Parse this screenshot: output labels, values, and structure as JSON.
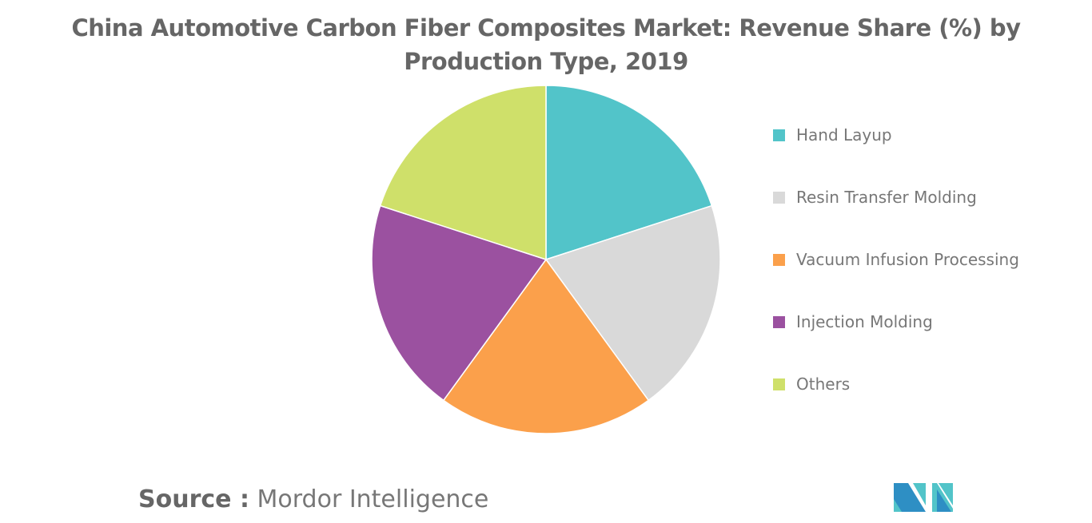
{
  "chart_data": {
    "type": "pie",
    "title": "China Automotive Carbon Fiber Composites Market: Revenue Share (%) by Production Type, 2019",
    "categories": [
      "Hand Layup",
      "Resin Transfer Molding",
      "Vacuum Infusion Processing",
      "Injection Molding",
      "Others"
    ],
    "values": [
      20,
      20,
      20,
      20,
      20
    ],
    "colors": [
      "#52c4c9",
      "#d9d9d9",
      "#fba04b",
      "#9b51a0",
      "#cfe06a"
    ],
    "legend": "right"
  },
  "source": {
    "label": "Source :",
    "value": "Mordor Intelligence"
  }
}
